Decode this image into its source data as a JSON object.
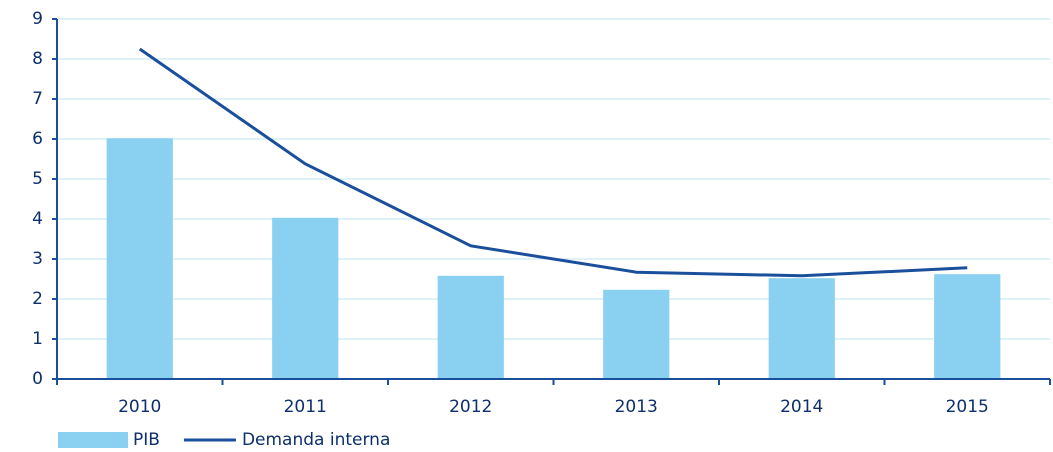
{
  "chart_data": {
    "type": "bar",
    "categories": [
      "2010",
      "2011",
      "2012",
      "2013",
      "2014",
      "2015"
    ],
    "series": [
      {
        "name": "PIB",
        "type": "bar",
        "color": "#8ad0f0",
        "values": [
          6.02,
          4.03,
          2.58,
          2.23,
          2.52,
          2.62
        ]
      },
      {
        "name": "Demanda interna",
        "type": "line",
        "color": "#1a4f9c",
        "values": [
          8.25,
          5.38,
          3.33,
          2.67,
          2.58,
          2.78
        ]
      }
    ],
    "ylim": [
      0,
      9
    ],
    "yticks": [
      0,
      1,
      2,
      3,
      4,
      5,
      6,
      7,
      8,
      9
    ],
    "grid": true,
    "legend": "bottom-left"
  }
}
